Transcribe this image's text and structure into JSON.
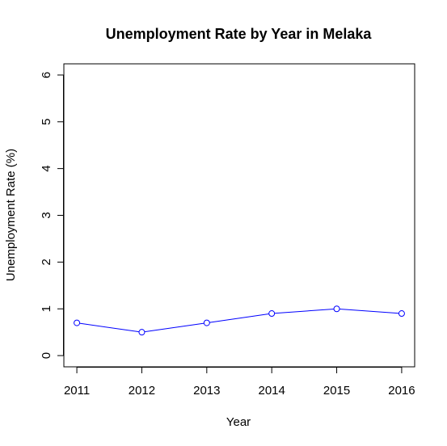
{
  "chart_data": {
    "type": "line",
    "title": "Unemployment Rate by Year in Melaka",
    "xlabel": "Year",
    "ylabel": "Unemployment Rate (%)",
    "x": [
      2011,
      2012,
      2013,
      2014,
      2015,
      2016
    ],
    "x_tick_labels": [
      "2011",
      "2012",
      "2013",
      "2014",
      "2015",
      "2016"
    ],
    "y_ticks": [
      0,
      1,
      2,
      3,
      4,
      5,
      6
    ],
    "y_tick_labels": [
      "0",
      "1",
      "2",
      "3",
      "4",
      "5",
      "6"
    ],
    "xlim": [
      2010.8,
      2016.2
    ],
    "ylim": [
      -0.24,
      6.24
    ],
    "series": [
      {
        "values": [
          0.7,
          0.5,
          0.7,
          0.9,
          1.0,
          0.9
        ],
        "color": "#0000ff"
      }
    ],
    "grid": false,
    "marker": "open-circle"
  }
}
